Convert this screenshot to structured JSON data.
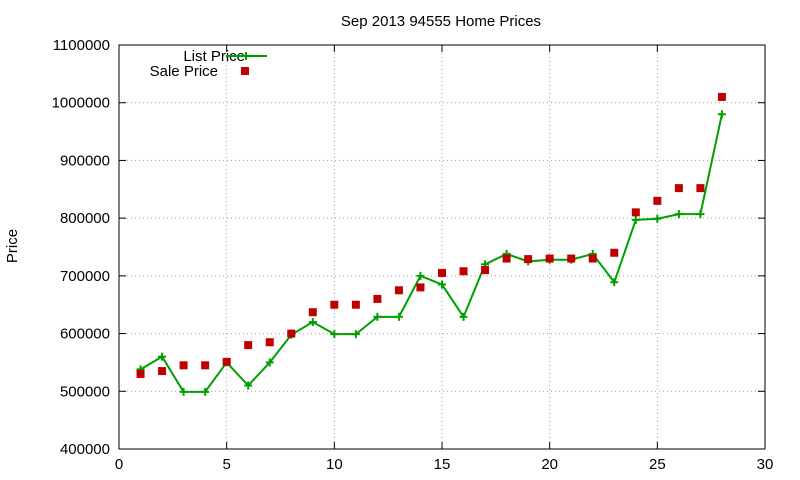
{
  "chart_data": {
    "type": "line",
    "title": "Sep 2013 94555 Home Prices",
    "xlabel": "",
    "ylabel": "Price",
    "xlim": [
      0,
      30
    ],
    "ylim": [
      400000,
      1100000
    ],
    "xticks": [
      "0",
      "5",
      "10",
      "15",
      "20",
      "25",
      "30"
    ],
    "yticks": [
      "400000",
      "500000",
      "600000",
      "700000",
      "800000",
      "900000",
      "1000000",
      "1100000"
    ],
    "grid": true,
    "legend_position": "top-left",
    "series": [
      {
        "name": "List Price",
        "style": "line-with-plus-markers",
        "color": "#00a000",
        "x": [
          1,
          2,
          3,
          4,
          5,
          6,
          7,
          8,
          9,
          10,
          11,
          12,
          13,
          14,
          15,
          16,
          17,
          18,
          19,
          20,
          21,
          22,
          23,
          24,
          25,
          26,
          27,
          28
        ],
        "y": [
          538000,
          560000,
          499000,
          499000,
          550000,
          510000,
          550000,
          598000,
          620000,
          599000,
          599000,
          629000,
          629000,
          700000,
          685000,
          629000,
          720000,
          738000,
          725000,
          728000,
          728000,
          738000,
          689000,
          797000,
          799000,
          807000,
          807000,
          980000
        ]
      },
      {
        "name": "Sale Price",
        "style": "square-markers",
        "color": "#c00000",
        "x": [
          1,
          2,
          3,
          4,
          5,
          6,
          7,
          8,
          9,
          10,
          11,
          12,
          13,
          14,
          15,
          16,
          17,
          18,
          19,
          20,
          21,
          22,
          23,
          24,
          25,
          26,
          27,
          28
        ],
        "y": [
          530000,
          535000,
          545000,
          545000,
          551000,
          580000,
          585000,
          600000,
          637000,
          650000,
          650000,
          660000,
          675000,
          680000,
          705000,
          708000,
          710000,
          730000,
          729000,
          730000,
          730000,
          730000,
          740000,
          810000,
          830000,
          852000,
          852000,
          1010000
        ]
      }
    ]
  }
}
